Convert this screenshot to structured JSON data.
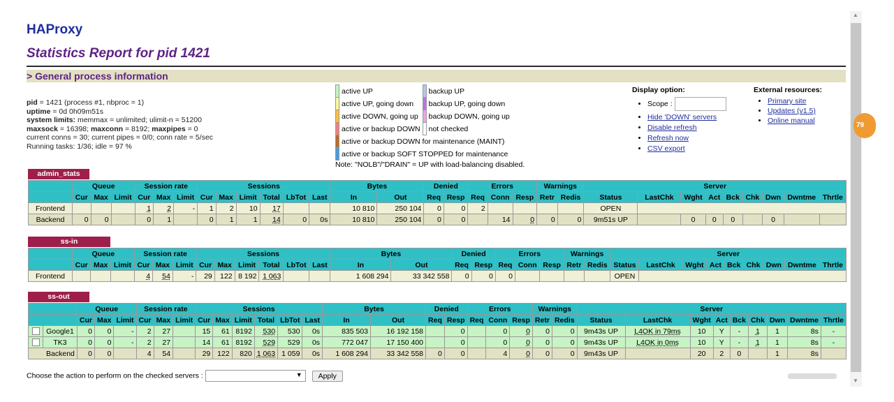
{
  "header": {
    "logo": "HAProxy",
    "report": "Statistics Report for pid 1421"
  },
  "section_title": "> General process information",
  "process_info": {
    "line1_key": "pid",
    "line1_val": " = 1421 (process #1, nbproc = 1)",
    "line2_key": "uptime",
    "line2_val": " = 0d 0h09m51s",
    "line3_key": "system limits:",
    "line3_val": " memmax = unlimited; ulimit-n = 51200",
    "line4_k1": "maxsock",
    "line4_v1": " = 16398; ",
    "line4_k2": "maxconn",
    "line4_v2": " = 8192; ",
    "line4_k3": "maxpipes",
    "line4_v3": " = 0",
    "line5": "current conns = 30; current pipes = 0/0; conn rate = 5/sec",
    "line6": "Running tasks: 1/36; idle = 97 %"
  },
  "legend": {
    "active_up": "active UP",
    "backup_up": "backup UP",
    "active_up_going_down": "active UP, going down",
    "backup_up_going_down": "backup UP, going down",
    "active_down_going_up": "active DOWN, going up",
    "backup_down_going_up": "backup DOWN, going up",
    "active_or_backup_down": "active or backup DOWN",
    "not_checked": "not checked",
    "maint": "active or backup DOWN for maintenance (MAINT)",
    "soft_stopped": "active or backup SOFT STOPPED for maintenance",
    "note": "Note: \"NOLB\"/\"DRAIN\" = UP with load-balancing disabled.",
    "colors": {
      "active_up": "#c8f3c4",
      "backup_up": "#b0c8f0",
      "active_up_going_down": "#f8f8a0",
      "backup_up_going_down": "#c070e8",
      "active_down_going_up": "#f8c040",
      "backup_down_going_up": "#f0a0f0",
      "active_or_backup_down": "#f08080",
      "not_checked": "#ffffff",
      "maint": "#b86b2e",
      "soft_stopped": "#4d9adf"
    }
  },
  "display": {
    "title": "Display option:",
    "scope_label": "Scope :",
    "hide_down": "Hide 'DOWN' servers",
    "disable_refresh": "Disable refresh",
    "refresh_now": "Refresh now",
    "csv_export": "CSV export"
  },
  "external": {
    "title": "External resources:",
    "primary_site": "Primary site",
    "updates": "Updates (v1.5)",
    "online_manual": "Online manual"
  },
  "proxies": {
    "admin_stats": "admin_stats",
    "ss_in": "ss-in",
    "ss_out": "ss-out"
  },
  "headers": {
    "queue": "Queue",
    "session_rate": "Session rate",
    "sessions": "Sessions",
    "bytes": "Bytes",
    "denied": "Denied",
    "errors": "Errors",
    "warnings": "Warnings",
    "server": "Server",
    "cur": "Cur",
    "max": "Max",
    "limit": "Limit",
    "total": "Total",
    "lbtot": "LbTot",
    "last": "Last",
    "in": "In",
    "out": "Out",
    "req": "Req",
    "resp": "Resp",
    "conn": "Conn",
    "retr": "Retr",
    "redis": "Redis",
    "status": "Status",
    "lastchk": "LastChk",
    "wght": "Wght",
    "act": "Act",
    "bck": "Bck",
    "chk": "Chk",
    "dwn": "Dwn",
    "dwntme": "Dwntme",
    "thrtle": "Thrtle"
  },
  "admin": {
    "frontend": {
      "name": "Frontend",
      "rate_cur": "1",
      "rate_max": "2",
      "rate_lim": "-",
      "s_cur": "1",
      "s_max": "2",
      "s_lim": "10",
      "s_tot": "17",
      "in": "10 810",
      "out": "250 104",
      "d_req": "0",
      "d_resp": "0",
      "e_req": "2",
      "status": "OPEN"
    },
    "backend": {
      "name": "Backend",
      "q_cur": "0",
      "q_max": "0",
      "rate_cur": "0",
      "rate_max": "1",
      "s_cur": "0",
      "s_max": "1",
      "s_lim": "1",
      "s_tot": "14",
      "lbtot": "0",
      "last": "0s",
      "in": "10 810",
      "out": "250 104",
      "d_req": "0",
      "d_resp": "0",
      "e_conn": "14",
      "e_resp": "0",
      "w_retr": "0",
      "w_redis": "0",
      "status": "9m51s UP",
      "wght": "0",
      "act": "0",
      "bck": "0",
      "dwn": "0"
    }
  },
  "ssin": {
    "frontend": {
      "name": "Frontend",
      "rate_cur": "4",
      "rate_max": "54",
      "rate_lim": "-",
      "s_cur": "29",
      "s_max": "122",
      "s_lim": "8 192",
      "s_tot": "1 063",
      "in": "1 608 294",
      "out": "33 342 558",
      "d_req": "0",
      "d_resp": "0",
      "e_req": "0",
      "status": "OPEN"
    }
  },
  "ssout": {
    "google1": {
      "name": "Google1",
      "q_cur": "0",
      "q_max": "0",
      "q_lim": "-",
      "rate_cur": "2",
      "rate_max": "27",
      "s_cur": "15",
      "s_max": "61",
      "s_lim": "8192",
      "s_tot": "530",
      "lbtot": "530",
      "last": "0s",
      "in": "835 503",
      "out": "16 192 158",
      "d_resp": "0",
      "e_conn": "0",
      "e_resp": "0",
      "w_retr": "0",
      "w_redis": "0",
      "status": "9m43s UP",
      "lastchk": "L4OK in 79ms",
      "wght": "10",
      "act": "Y",
      "bck": "-",
      "chk": "1",
      "dwn": "1",
      "dwntme": "8s",
      "thrtle": "-"
    },
    "tk3": {
      "name": "TK3",
      "q_cur": "0",
      "q_max": "0",
      "q_lim": "-",
      "rate_cur": "2",
      "rate_max": "27",
      "s_cur": "14",
      "s_max": "61",
      "s_lim": "8192",
      "s_tot": "529",
      "lbtot": "529",
      "last": "0s",
      "in": "772 047",
      "out": "17 150 400",
      "d_resp": "0",
      "e_conn": "0",
      "e_resp": "0",
      "w_retr": "0",
      "w_redis": "0",
      "status": "9m43s UP",
      "lastchk": "L4OK in 0ms",
      "wght": "10",
      "act": "Y",
      "bck": "-",
      "chk": "1",
      "dwn": "1",
      "dwntme": "8s",
      "thrtle": "-"
    },
    "backend": {
      "name": "Backend",
      "q_cur": "0",
      "q_max": "0",
      "rate_cur": "4",
      "rate_max": "54",
      "s_cur": "29",
      "s_max": "122",
      "s_lim": "820",
      "s_tot": "1 063",
      "lbtot": "1 059",
      "last": "0s",
      "in": "1 608 294",
      "out": "33 342 558",
      "d_req": "0",
      "d_resp": "0",
      "e_conn": "4",
      "e_resp": "0",
      "w_retr": "0",
      "w_redis": "0",
      "status": "9m43s UP",
      "wght": "20",
      "act": "2",
      "bck": "0",
      "dwn": "1",
      "dwntme": "8s"
    }
  },
  "action": {
    "label": "Choose the action to perform on the checked servers :",
    "apply": "Apply",
    "selected": ""
  },
  "badge": "79"
}
